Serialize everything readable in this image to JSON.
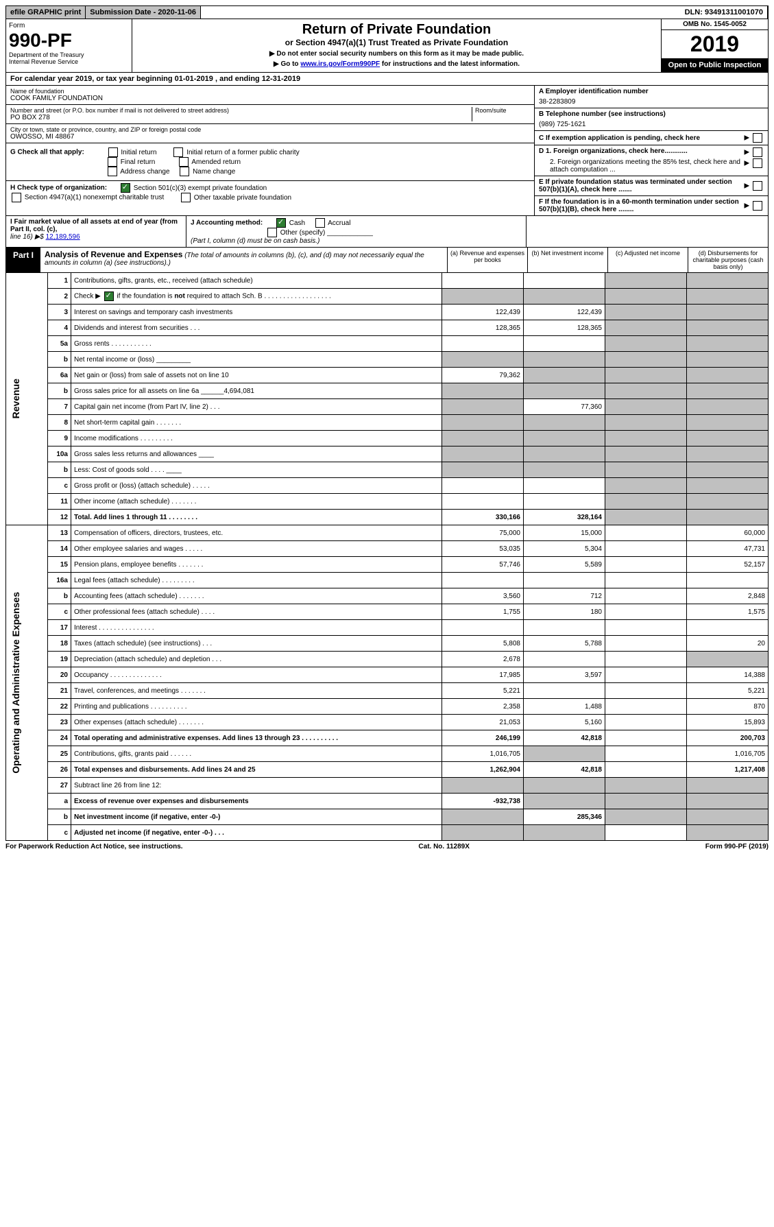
{
  "topbar": {
    "efile": "efile GRAPHIC print",
    "submission": "Submission Date - 2020-11-06",
    "dln": "DLN: 93491311001070"
  },
  "header": {
    "form_label": "Form",
    "form_number": "990-PF",
    "dept1": "Department of the Treasury",
    "dept2": "Internal Revenue Service",
    "title": "Return of Private Foundation",
    "subtitle": "or Section 4947(a)(1) Trust Treated as Private Foundation",
    "instr1": "▶ Do not enter social security numbers on this form as it may be made public.",
    "instr2_pre": "▶ Go to ",
    "instr2_link": "www.irs.gov/Form990PF",
    "instr2_post": " for instructions and the latest information.",
    "omb": "OMB No. 1545-0052",
    "year": "2019",
    "open": "Open to Public Inspection"
  },
  "calyear": "For calendar year 2019, or tax year beginning 01-01-2019              , and ending 12-31-2019",
  "info": {
    "name_label": "Name of foundation",
    "name": "COOK FAMILY FOUNDATION",
    "addr_label": "Number and street (or P.O. box number if mail is not delivered to street address)",
    "addr": "PO BOX 278",
    "room_label": "Room/suite",
    "city_label": "City or town, state or province, country, and ZIP or foreign postal code",
    "city": "OWOSSO, MI  48867",
    "ein_label": "A Employer identification number",
    "ein": "38-2283809",
    "phone_label": "B Telephone number (see instructions)",
    "phone": "(989) 725-1621",
    "c_label": "C If exemption application is pending, check here",
    "d1": "D 1. Foreign organizations, check here............",
    "d2": "2. Foreign organizations meeting the 85% test, check here and attach computation ...",
    "e": "E  If private foundation status was terminated under section 507(b)(1)(A), check here .......",
    "f": "F  If the foundation is in a 60-month termination under section 507(b)(1)(B), check here ........"
  },
  "g": {
    "label": "G Check all that apply:",
    "o1": "Initial return",
    "o2": "Initial return of a former public charity",
    "o3": "Final return",
    "o4": "Amended return",
    "o5": "Address change",
    "o6": "Name change"
  },
  "h": {
    "label": "H Check type of organization:",
    "o1": "Section 501(c)(3) exempt private foundation",
    "o2": "Section 4947(a)(1) nonexempt charitable trust",
    "o3": "Other taxable private foundation"
  },
  "fmv": {
    "i_label": "I Fair market value of all assets at end of year (from Part II, col. (c),",
    "i_line": "line 16) ▶$  ",
    "i_val": "12,189,596",
    "j_label": "J Accounting method:",
    "j1": "Cash",
    "j2": "Accrual",
    "j3": "Other (specify)",
    "j_note": "(Part I, column (d) must be on cash basis.)"
  },
  "part1": {
    "label": "Part I",
    "title": "Analysis of Revenue and Expenses",
    "note": " (The total of amounts in columns (b), (c), and (d) may not necessarily equal the amounts in column (a) (see instructions).)",
    "col_a": "(a)  Revenue and expenses per books",
    "col_b": "(b)  Net investment income",
    "col_c": "(c)  Adjusted net income",
    "col_d": "(d)  Disbursements for charitable purposes (cash basis only)"
  },
  "rev_label": "Revenue",
  "exp_label": "Operating and Administrative Expenses",
  "lines": {
    "l1": {
      "n": "1",
      "d": "Contributions, gifts, grants, etc., received (attach schedule)",
      "a": "",
      "b": "",
      "cd_grey": true
    },
    "l2": {
      "n": "2",
      "d": "Check ▶ [x] if the foundation is not required to attach Sch. B",
      "abcd_grey": true
    },
    "l3": {
      "n": "3",
      "d": "Interest on savings and temporary cash investments",
      "a": "122,439",
      "b": "122,439"
    },
    "l4": {
      "n": "4",
      "d": "Dividends and interest from securities    .   .   .",
      "a": "128,365",
      "b": "128,365"
    },
    "l5a": {
      "n": "5a",
      "d": "Gross rents    .   .   .   .   .   .   .   .   .   .   ."
    },
    "l5b": {
      "n": "b",
      "d": "Net rental income or (loss)  _________",
      "ab_grey": true
    },
    "l6a": {
      "n": "6a",
      "d": "Net gain or (loss) from sale of assets not on line 10",
      "a": "79,362",
      "b_grey": true
    },
    "l6b": {
      "n": "b",
      "d": "Gross sales price for all assets on line 6a  ______4,694,081",
      "abcd_grey": true
    },
    "l7": {
      "n": "7",
      "d": "Capital gain net income (from Part IV, line 2)   .   .   .",
      "a_grey": true,
      "b": "77,360"
    },
    "l8": {
      "n": "8",
      "d": "Net short-term capital gain   .   .   .   .   .   .   .",
      "ab_grey": true
    },
    "l9": {
      "n": "9",
      "d": "Income modifications  .   .   .   .   .   .   .   .   .",
      "ab_grey": true
    },
    "l10a": {
      "n": "10a",
      "d": "Gross sales less returns and allowances  ____",
      "abcd_grey": true
    },
    "l10b": {
      "n": "b",
      "d": "Less: Cost of goods sold     .   .   .   .  ____",
      "abcd_grey": true
    },
    "l10c": {
      "n": "c",
      "d": "Gross profit or (loss) (attach schedule)   .   .   .   .   ."
    },
    "l11": {
      "n": "11",
      "d": "Other income (attach schedule)   .   .   .   .   .   .   ."
    },
    "l12": {
      "n": "12",
      "d": "Total. Add lines 1 through 11    .   .   .   .   .   .   .   .",
      "a": "330,166",
      "b": "328,164",
      "bold": true
    },
    "l13": {
      "n": "13",
      "d": "Compensation of officers, directors, trustees, etc.",
      "a": "75,000",
      "b": "15,000",
      "dd": "60,000"
    },
    "l14": {
      "n": "14",
      "d": "Other employee salaries and wages    .   .   .   .   .",
      "a": "53,035",
      "b": "5,304",
      "dd": "47,731"
    },
    "l15": {
      "n": "15",
      "d": "Pension plans, employee benefits   .   .   .   .   .   .   .",
      "a": "57,746",
      "b": "5,589",
      "dd": "52,157"
    },
    "l16a": {
      "n": "16a",
      "d": "Legal fees (attach schedule)  .   .   .   .   .   .   .   .   ."
    },
    "l16b": {
      "n": "b",
      "d": "Accounting fees (attach schedule)  .   .   .   .   .   .   .",
      "a": "3,560",
      "b": "712",
      "dd": "2,848"
    },
    "l16c": {
      "n": "c",
      "d": "Other professional fees (attach schedule)    .   .   .   .",
      "a": "1,755",
      "b": "180",
      "dd": "1,575"
    },
    "l17": {
      "n": "17",
      "d": "Interest   .   .   .   .   .   .   .   .   .   .   .   .   .   .   ."
    },
    "l18": {
      "n": "18",
      "d": "Taxes (attach schedule) (see instructions)    .   .   .",
      "a": "5,808",
      "b": "5,788",
      "dd": "20"
    },
    "l19": {
      "n": "19",
      "d": "Depreciation (attach schedule) and depletion   .   .   .",
      "a": "2,678",
      "d_grey": true
    },
    "l20": {
      "n": "20",
      "d": "Occupancy  .   .   .   .   .   .   .   .   .   .   .   .   .   .",
      "a": "17,985",
      "b": "3,597",
      "dd": "14,388"
    },
    "l21": {
      "n": "21",
      "d": "Travel, conferences, and meetings  .   .   .   .   .   .   .",
      "a": "5,221",
      "dd": "5,221"
    },
    "l22": {
      "n": "22",
      "d": "Printing and publications  .   .   .   .   .   .   .   .   .   .",
      "a": "2,358",
      "b": "1,488",
      "dd": "870"
    },
    "l23": {
      "n": "23",
      "d": "Other expenses (attach schedule)   .   .   .   .   .   .   .",
      "a": "21,053",
      "b": "5,160",
      "dd": "15,893"
    },
    "l24": {
      "n": "24",
      "d": "Total operating and administrative expenses. Add lines 13 through 23   .   .   .   .   .   .   .   .   .   .",
      "a": "246,199",
      "b": "42,818",
      "dd": "200,703",
      "bold": true
    },
    "l25": {
      "n": "25",
      "d": "Contributions, gifts, grants paid     .   .   .   .   .   .",
      "a": "1,016,705",
      "b_grey": true,
      "dd": "1,016,705"
    },
    "l26": {
      "n": "26",
      "d": "Total expenses and disbursements. Add lines 24 and 25",
      "a": "1,262,904",
      "b": "42,818",
      "dd": "1,217,408",
      "bold": true
    },
    "l27": {
      "n": "27",
      "d": "Subtract line 26 from line 12:",
      "abcd_grey": true
    },
    "l27a": {
      "n": "a",
      "d": "Excess of revenue over expenses and disbursements",
      "a": "-932,738",
      "bcd_grey": true,
      "bold": true
    },
    "l27b": {
      "n": "b",
      "d": "Net investment income (if negative, enter -0-)",
      "a_grey": true,
      "b": "285,346",
      "cd_grey": true,
      "bold": true
    },
    "l27c": {
      "n": "c",
      "d": "Adjusted net income (if negative, enter -0-)   .   .   .",
      "ab_grey": true,
      "d_grey": true,
      "bold": true
    }
  },
  "footer": {
    "left": "For Paperwork Reduction Act Notice, see instructions.",
    "mid": "Cat. No. 11289X",
    "right": "Form 990-PF (2019)"
  }
}
